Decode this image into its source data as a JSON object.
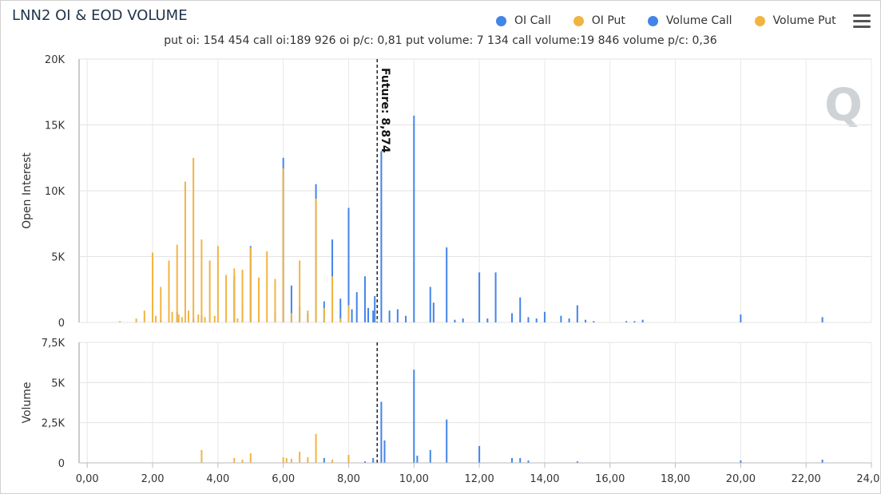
{
  "title": "LNN2 OI & EOD VOLUME",
  "subtitle": "put oi: 154 454 call oi:189 926 oi p/c: 0,81 put volume: 7 134 call volume:19 846 volume p/c: 0,36",
  "legend": [
    {
      "label": "OI Call",
      "color": "#4285e8"
    },
    {
      "label": "OI Put",
      "color": "#f2b441"
    },
    {
      "label": "Volume Call",
      "color": "#4285e8"
    },
    {
      "label": "Volume Put",
      "color": "#f2b441"
    }
  ],
  "future_label": "Future: 8,874",
  "chart_data": [
    {
      "type": "bar",
      "name_top": "OI",
      "ylabel": "Open Interest",
      "yticks": [
        "0",
        "5K",
        "10K",
        "15K",
        "20K"
      ],
      "ylim": [
        0,
        20000
      ],
      "future": 8.874,
      "series": [
        {
          "name": "OI Call",
          "color": "#4285e8",
          "x": [
            2.25,
            2.75,
            3.25,
            3.5,
            4.5,
            4.75,
            5.0,
            5.25,
            5.75,
            6.0,
            6.25,
            6.5,
            6.75,
            7.0,
            7.25,
            7.5,
            7.75,
            8.0,
            8.1,
            8.25,
            8.5,
            8.6,
            8.75,
            8.8,
            9.0,
            9.25,
            9.5,
            9.75,
            10.0,
            10.5,
            10.6,
            11.0,
            11.25,
            11.5,
            12.0,
            12.25,
            12.5,
            13.0,
            13.25,
            13.5,
            13.75,
            14.0,
            14.5,
            14.75,
            15.0,
            15.25,
            15.5,
            16.5,
            16.75,
            17.0,
            20.0,
            22.5
          ],
          "values": [
            200,
            800,
            300,
            500,
            3500,
            1300,
            5800,
            3400,
            800,
            12500,
            2800,
            1200,
            700,
            10500,
            1600,
            6300,
            1800,
            8700,
            1000,
            2300,
            3500,
            1100,
            900,
            2000,
            13000,
            900,
            1000,
            500,
            15700,
            2700,
            1500,
            5700,
            200,
            300,
            3800,
            300,
            3800,
            700,
            1900,
            400,
            300,
            800,
            500,
            300,
            1300,
            200,
            100,
            100,
            100,
            200,
            600,
            400
          ]
        },
        {
          "name": "OI Put",
          "color": "#f2b441",
          "x": [
            1.0,
            1.5,
            1.75,
            2.0,
            2.1,
            2.25,
            2.5,
            2.6,
            2.75,
            2.8,
            2.9,
            3.0,
            3.1,
            3.25,
            3.4,
            3.5,
            3.6,
            3.75,
            3.9,
            4.0,
            4.25,
            4.5,
            4.6,
            4.75,
            5.0,
            5.25,
            5.5,
            5.75,
            6.0,
            6.25,
            6.5,
            6.75,
            7.0,
            7.25,
            7.5,
            7.75,
            8.0
          ],
          "values": [
            100,
            300,
            900,
            5300,
            500,
            2700,
            4700,
            800,
            5900,
            600,
            400,
            10700,
            900,
            12500,
            600,
            6300,
            400,
            4700,
            500,
            5800,
            3600,
            4100,
            300,
            4000,
            5700,
            3400,
            5400,
            3300,
            11700,
            700,
            4700,
            900,
            9400,
            1100,
            3500,
            300,
            1300
          ]
        }
      ],
      "x_range": [
        -0.25,
        24.0
      ]
    },
    {
      "type": "bar",
      "ylabel": "Volume",
      "yticks": [
        "0",
        "2,5K",
        "5K",
        "7,5K"
      ],
      "ylim": [
        0,
        7500
      ],
      "xlabel": "",
      "xticks": [
        "0,00",
        "2,00",
        "4,00",
        "6,00",
        "8,00",
        "10,00",
        "12,00",
        "14,00",
        "16,00",
        "18,00",
        "20,00",
        "22,00",
        "24,00"
      ],
      "series": [
        {
          "name": "Volume Call",
          "color": "#4285e8",
          "x": [
            7.25,
            8.0,
            8.5,
            8.75,
            9.0,
            9.1,
            10.0,
            10.1,
            10.5,
            11.0,
            12.0,
            13.0,
            13.25,
            13.5,
            15.0,
            20.0,
            22.5
          ],
          "values": [
            300,
            400,
            100,
            300,
            3800,
            1400,
            5800,
            450,
            800,
            2700,
            1050,
            300,
            300,
            150,
            100,
            150,
            200
          ]
        },
        {
          "name": "Volume Put",
          "color": "#f2b441",
          "x": [
            3.5,
            4.5,
            4.75,
            5.0,
            6.0,
            6.1,
            6.25,
            6.5,
            6.75,
            7.0,
            7.5,
            8.0
          ],
          "values": [
            800,
            300,
            200,
            600,
            350,
            300,
            250,
            700,
            350,
            1800,
            200,
            500
          ]
        }
      ],
      "x_range": [
        -0.25,
        24.0
      ]
    }
  ]
}
